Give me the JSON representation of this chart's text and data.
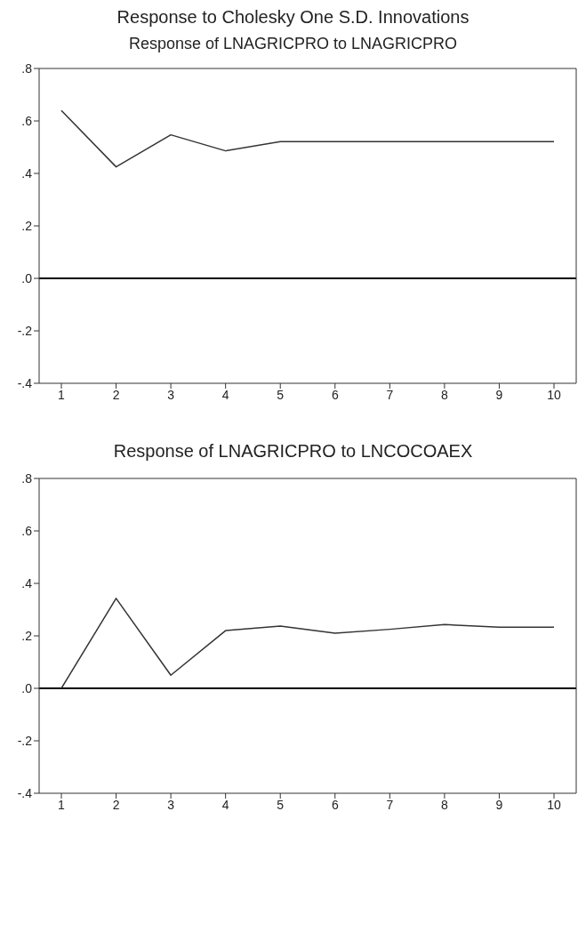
{
  "chart_data": [
    {
      "type": "line",
      "title": "Response to Cholesky One S.D. Innovations",
      "subtitle": "Response of LNAGRICPRO to LNAGRICPRO",
      "categories": [
        "1",
        "2",
        "3",
        "4",
        "5",
        "6",
        "7",
        "8",
        "9",
        "10"
      ],
      "series": [
        {
          "color": "#333333",
          "values": [
            0.64,
            0.425,
            0.547,
            0.486,
            0.521,
            0.521,
            0.521,
            0.521,
            0.521,
            0.521
          ]
        }
      ],
      "ylim": [
        -0.4,
        0.8
      ],
      "yticks": [
        {
          "value": -0.4,
          "label": "-.4"
        },
        {
          "value": -0.2,
          "label": "-.2"
        },
        {
          "value": 0,
          "label": ".0"
        },
        {
          "value": 0.2,
          "label": ".2"
        },
        {
          "value": 0.4,
          "label": ".4"
        },
        {
          "value": 0.6,
          "label": ".6"
        },
        {
          "value": 0.8,
          "label": ".8"
        }
      ],
      "ref_lines": [
        {
          "axis": "y",
          "value": 0,
          "color": "#000000"
        }
      ],
      "grid": false,
      "legend": false,
      "marker": "none",
      "line_style": "solid"
    },
    {
      "type": "line",
      "title": "Response of LNAGRICPRO to LNCOCOAEX",
      "categories": [
        "1",
        "2",
        "3",
        "4",
        "5",
        "6",
        "7",
        "8",
        "9",
        "10"
      ],
      "series": [
        {
          "color": "#333333",
          "values": [
            0,
            0.343,
            0.05,
            0.22,
            0.237,
            0.21,
            0.225,
            0.243,
            0.233,
            0.233
          ]
        }
      ],
      "ylim": [
        -0.4,
        0.8
      ],
      "yticks": [
        {
          "value": -0.4,
          "label": "-.4"
        },
        {
          "value": -0.2,
          "label": "-.2"
        },
        {
          "value": 0,
          "label": ".0"
        },
        {
          "value": 0.2,
          "label": ".2"
        },
        {
          "value": 0.4,
          "label": ".4"
        },
        {
          "value": 0.6,
          "label": ".6"
        },
        {
          "value": 0.8,
          "label": ".8"
        }
      ],
      "ref_lines": [
        {
          "axis": "y",
          "value": 0,
          "color": "#000000"
        }
      ],
      "grid": false,
      "legend": false,
      "marker": "none",
      "line_style": "solid"
    }
  ]
}
